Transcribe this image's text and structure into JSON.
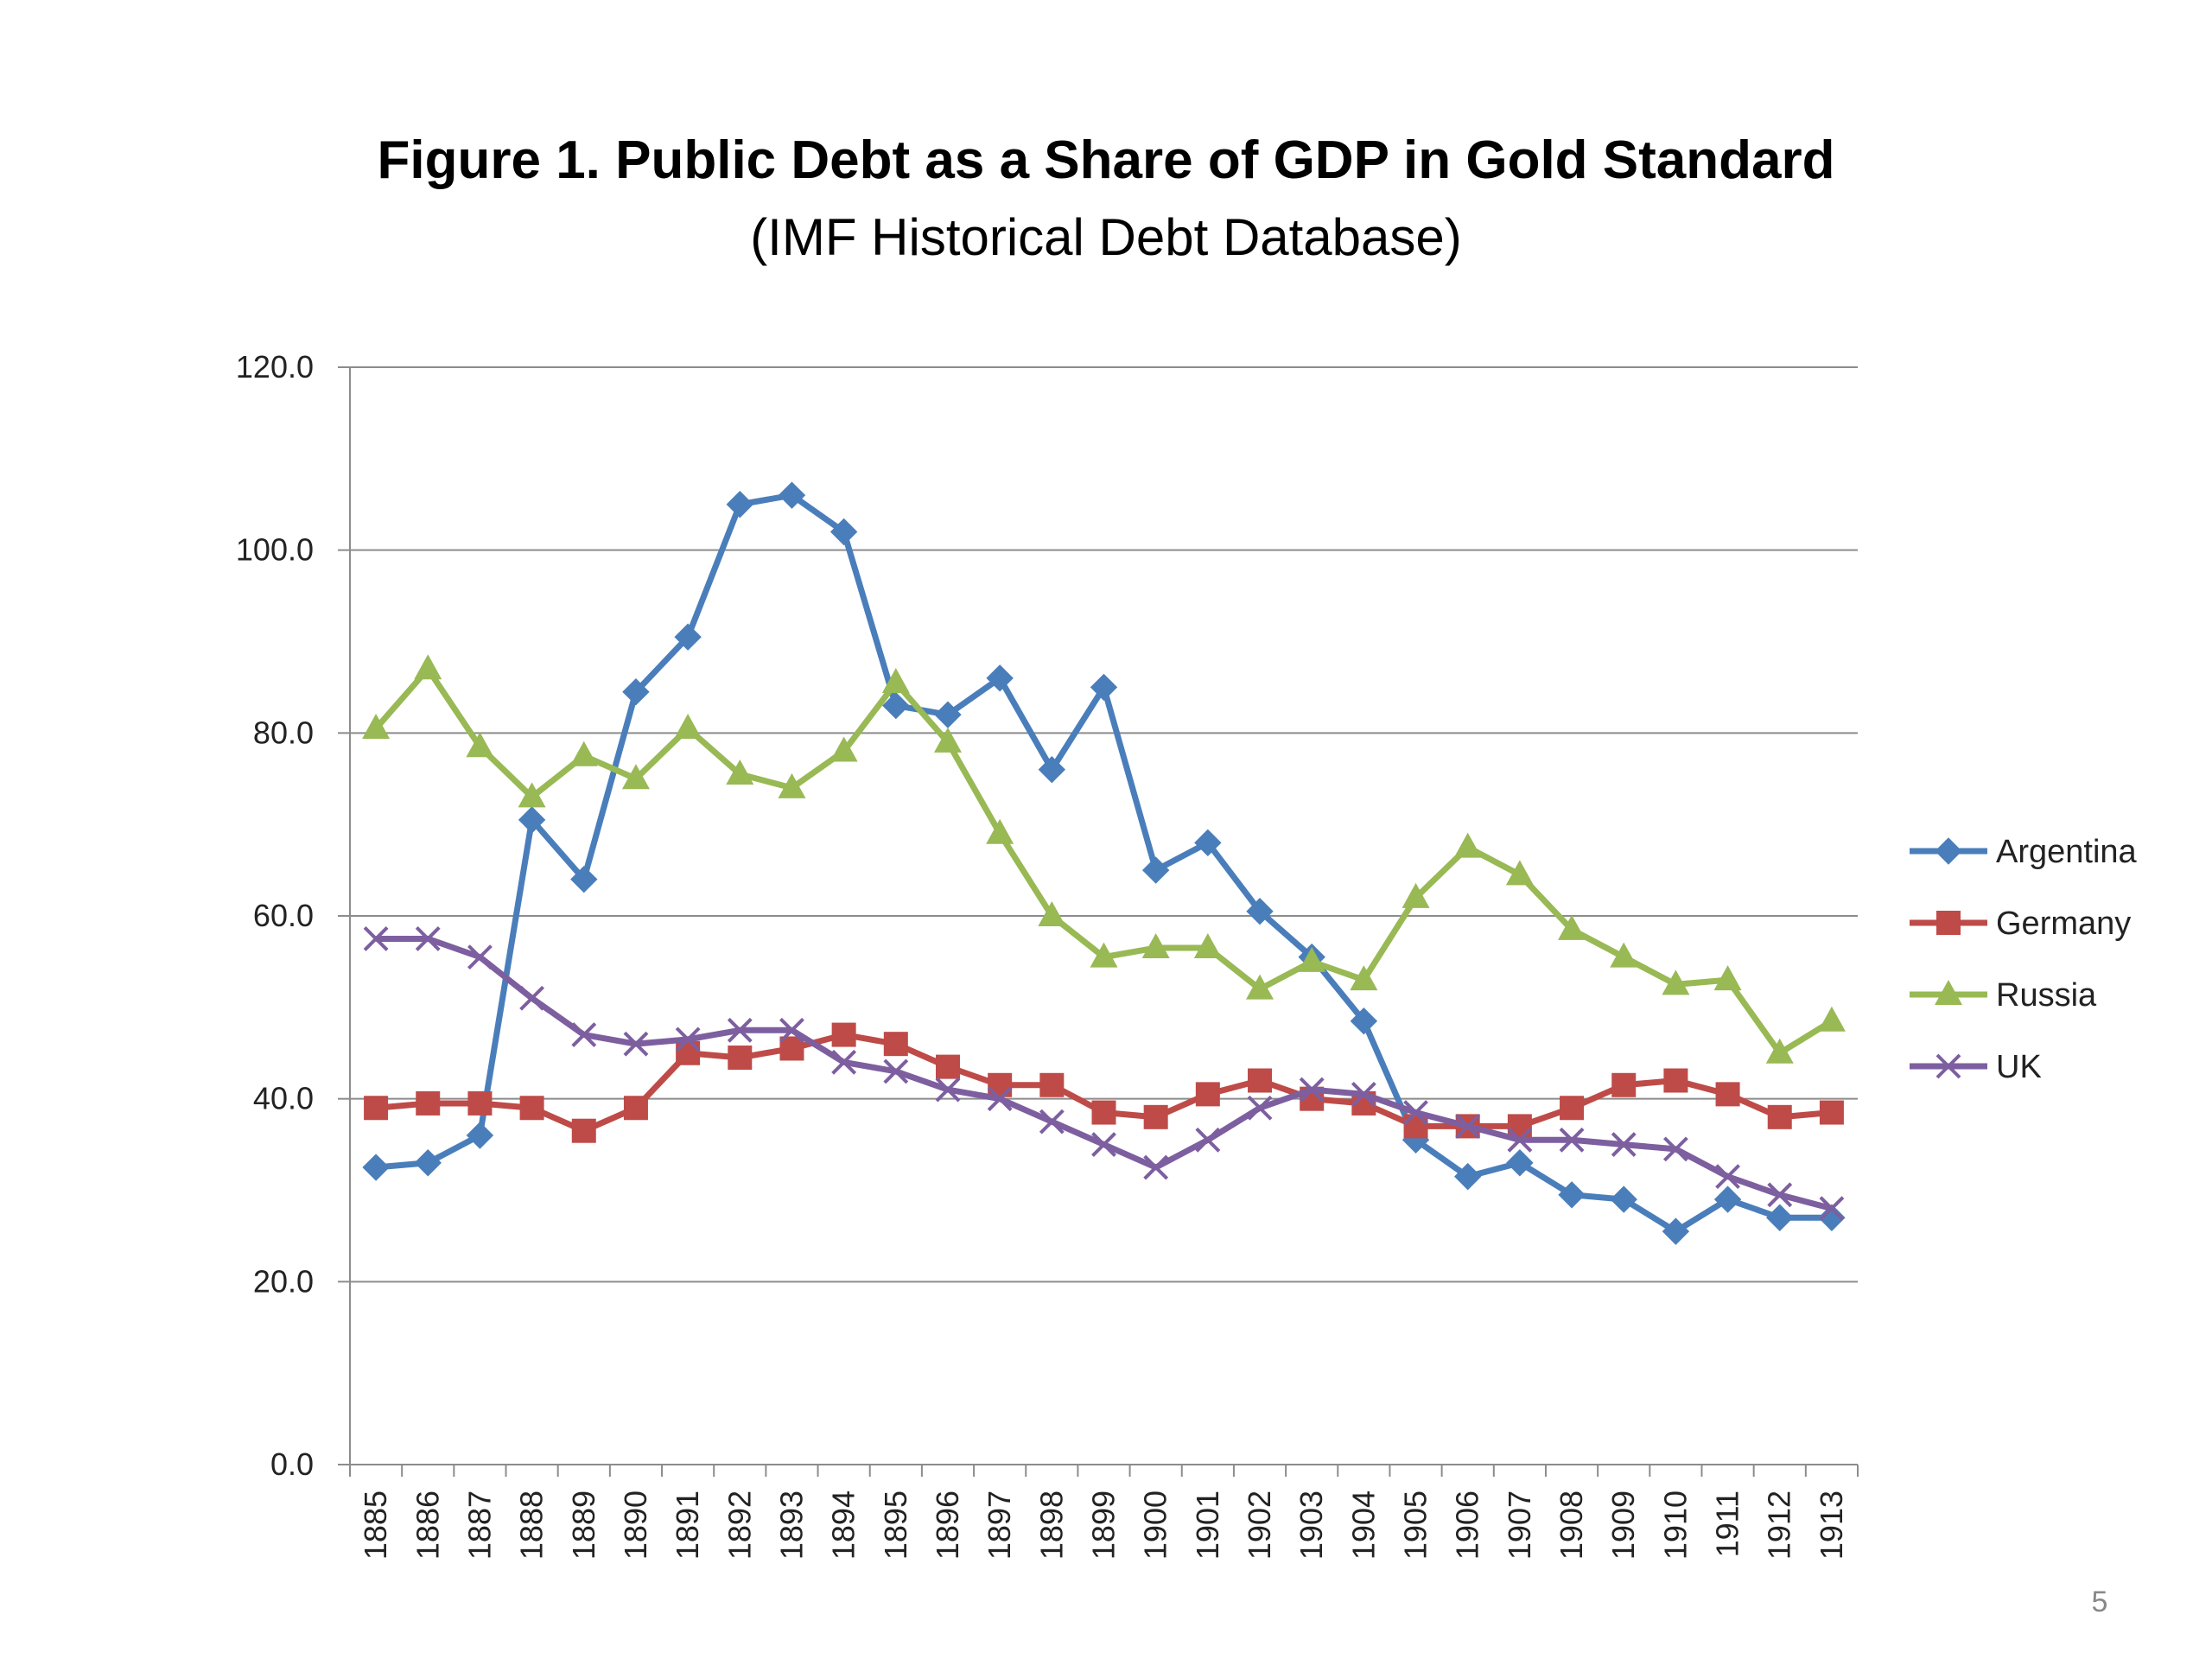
{
  "slide": {
    "page_number": "5"
  },
  "chart_data": {
    "type": "line",
    "title": "Figure 1. Public Debt as a Share of GDP in Gold Standard",
    "subtitle": "(IMF Historical Debt Database)",
    "xlabel": "",
    "ylabel": "",
    "ylim": [
      0,
      120
    ],
    "yticks": [
      "0.0",
      "20.0",
      "40.0",
      "60.0",
      "80.0",
      "100.0",
      "120.0"
    ],
    "grid": true,
    "legend_position": "right",
    "categories": [
      "1885",
      "1886",
      "1887",
      "1888",
      "1889",
      "1890",
      "1891",
      "1892",
      "1893",
      "1894",
      "1895",
      "1896",
      "1897",
      "1898",
      "1899",
      "1900",
      "1901",
      "1902",
      "1903",
      "1904",
      "1905",
      "1906",
      "1907",
      "1908",
      "1909",
      "1910",
      "1911",
      "1912",
      "1913"
    ],
    "series": [
      {
        "name": "Argentina",
        "color": "#4a7ebb",
        "marker": "diamond",
        "values": [
          32.5,
          33.0,
          36.0,
          70.5,
          64.0,
          84.5,
          90.5,
          105.0,
          106.0,
          102.0,
          83.0,
          82.0,
          86.0,
          76.0,
          85.0,
          65.0,
          68.0,
          60.5,
          55.5,
          48.5,
          35.5,
          31.5,
          33.0,
          29.5,
          29.0,
          25.5,
          29.0,
          27.0,
          27.0
        ]
      },
      {
        "name": "Germany",
        "color": "#be4b48",
        "marker": "square",
        "values": [
          39.0,
          39.5,
          39.5,
          39.0,
          36.5,
          39.0,
          45.0,
          44.5,
          45.5,
          47.0,
          46.0,
          43.5,
          41.5,
          41.5,
          38.5,
          38.0,
          40.5,
          42.0,
          40.0,
          39.5,
          37.0,
          37.0,
          37.0,
          39.0,
          41.5,
          42.0,
          40.5,
          38.0,
          38.5
        ]
      },
      {
        "name": "Russia",
        "color": "#98b954",
        "marker": "triangle",
        "values": [
          80.5,
          87.0,
          78.5,
          73.0,
          77.5,
          75.0,
          80.5,
          75.5,
          74.0,
          78.0,
          85.5,
          79.0,
          69.0,
          60.0,
          55.5,
          56.5,
          56.5,
          52.0,
          55.0,
          53.0,
          62.0,
          67.5,
          64.5,
          58.5,
          55.5,
          52.5,
          53.0,
          45.0,
          48.5
        ]
      },
      {
        "name": "UK",
        "color": "#7d5fa0",
        "marker": "x",
        "values": [
          57.5,
          57.5,
          55.5,
          51.0,
          47.0,
          46.0,
          46.5,
          47.5,
          47.5,
          44.0,
          43.0,
          41.0,
          40.0,
          37.5,
          35.0,
          32.5,
          35.5,
          39.0,
          41.0,
          40.5,
          38.5,
          37.0,
          35.5,
          35.5,
          35.0,
          34.5,
          31.5,
          29.5,
          28.0
        ]
      }
    ]
  }
}
